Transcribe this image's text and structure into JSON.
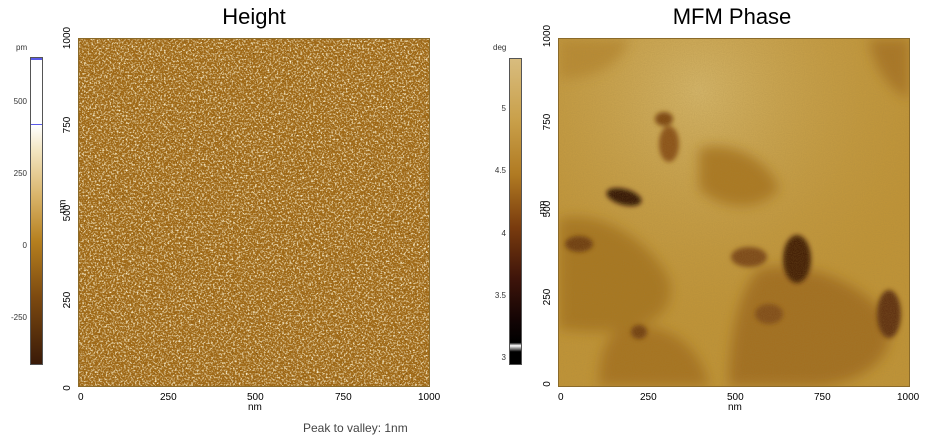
{
  "panels": {
    "height": {
      "title": "Height",
      "x_axis_label": "nm",
      "y_axis_label": "nm",
      "x_ticks": [
        "0",
        "250",
        "500",
        "750",
        "1000"
      ],
      "y_ticks": [
        "0",
        "250",
        "500",
        "750",
        "1000"
      ],
      "colorbar": {
        "unit": "pm",
        "ticks": [
          "500",
          "250",
          "0",
          "-250"
        ],
        "colors": [
          "#2a0f05",
          "#6b3a0e",
          "#b07d1e",
          "#e0c070",
          "#ffffff"
        ]
      }
    },
    "phase": {
      "title": "MFM Phase",
      "x_axis_label": "nm",
      "y_axis_label": "nm",
      "x_ticks": [
        "0",
        "250",
        "500",
        "750",
        "1000"
      ],
      "y_ticks": [
        "0",
        "250",
        "500",
        "750",
        "1000"
      ],
      "colorbar": {
        "unit": "deg",
        "ticks": [
          "5",
          "4.5",
          "4",
          "3.5",
          "3"
        ],
        "colors": [
          "#000000",
          "#3a1205",
          "#8a4a12",
          "#c49a3a",
          "#e0c68a"
        ]
      }
    }
  },
  "footer": {
    "peak_to_valley": "Peak to valley: 1nm"
  }
}
